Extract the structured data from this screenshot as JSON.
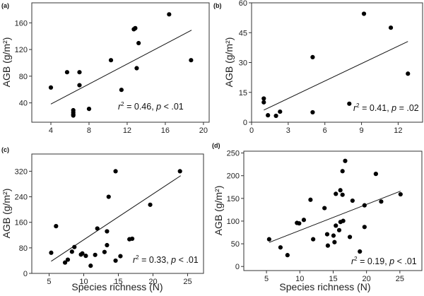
{
  "chart_data": [
    {
      "type": "scatter",
      "panel_label": "(a)",
      "title": "",
      "xlabel": "",
      "ylabel": "AGB (g/m²)",
      "xlim": [
        2,
        20.6
      ],
      "ylim": [
        11,
        190
      ],
      "xticks": [
        4,
        8,
        12,
        16,
        20
      ],
      "yticks": [
        40,
        80,
        120,
        160
      ],
      "grid": false,
      "points": [
        [
          4,
          63
        ],
        [
          5.7,
          86
        ],
        [
          7,
          86
        ],
        [
          7,
          66.5
        ],
        [
          6.35,
          29
        ],
        [
          6.35,
          26
        ],
        [
          6.35,
          23
        ],
        [
          6.35,
          21
        ],
        [
          8,
          31
        ],
        [
          10.3,
          104
        ],
        [
          11.4,
          59.5
        ],
        [
          12.7,
          150.4
        ],
        [
          12.85,
          152
        ],
        [
          13,
          92
        ],
        [
          13.2,
          129.6
        ],
        [
          16.4,
          172.7
        ],
        [
          18.7,
          104
        ]
      ],
      "fit_line": [
        [
          4,
          38.2
        ],
        [
          18.75,
          149
        ]
      ],
      "annotation": {
        "r2": "0.46",
        "p_op": "<",
        "p_val": ".01"
      }
    },
    {
      "type": "scatter",
      "panel_label": "(b)",
      "title": "",
      "xlabel": "",
      "ylabel": "AGB (g/m²)",
      "xlim": [
        0,
        14
      ],
      "ylim": [
        0,
        60
      ],
      "xticks": [
        0,
        3,
        6,
        9,
        12
      ],
      "yticks": [
        0,
        15,
        30,
        45,
        60
      ],
      "grid": false,
      "points": [
        [
          1,
          11.9
        ],
        [
          1,
          10
        ],
        [
          1.34,
          3.5
        ],
        [
          2,
          3.2
        ],
        [
          2.33,
          5.3
        ],
        [
          5,
          32.7
        ],
        [
          5,
          5
        ],
        [
          8,
          9.3
        ],
        [
          9.2,
          54.5
        ],
        [
          11.4,
          47.5
        ],
        [
          12.8,
          24.4
        ]
      ],
      "fit_line": [
        [
          1,
          6.1
        ],
        [
          12.8,
          40.6
        ]
      ],
      "annotation": {
        "r2": "0.41",
        "p_op": "=",
        "p_val": ".02"
      }
    },
    {
      "type": "scatter",
      "panel_label": "(c)",
      "title": "",
      "xlabel": "Species richness (N)",
      "ylabel": "AGB (g/m²)",
      "xlim": [
        2.5,
        27.3
      ],
      "ylim": [
        0,
        374
      ],
      "xticks": [
        5,
        10,
        15,
        20,
        25
      ],
      "yticks": [
        0,
        80,
        160,
        240,
        320
      ],
      "grid": false,
      "points": [
        [
          5.3,
          64.7
        ],
        [
          6,
          148
        ],
        [
          7.3,
          34
        ],
        [
          7.7,
          43
        ],
        [
          8.3,
          68
        ],
        [
          8.65,
          82.6
        ],
        [
          9.6,
          59
        ],
        [
          9.8,
          62.5
        ],
        [
          10.3,
          55
        ],
        [
          11,
          24
        ],
        [
          11.65,
          58
        ],
        [
          11.96,
          140.6
        ],
        [
          13,
          67
        ],
        [
          13.36,
          131.7
        ],
        [
          13.36,
          88.5
        ],
        [
          13.6,
          240
        ],
        [
          14.6,
          320
        ],
        [
          14.6,
          40
        ],
        [
          15.3,
          54
        ],
        [
          16.6,
          107
        ],
        [
          17,
          108.6
        ],
        [
          19.6,
          215
        ],
        [
          23.9,
          320
        ]
      ],
      "fit_line": [
        [
          5.3,
          38
        ],
        [
          24,
          306
        ]
      ],
      "annotation": {
        "r2": "0.33",
        "p_op": "<",
        "p_val": ".01"
      }
    },
    {
      "type": "scatter",
      "panel_label": "(d)",
      "title": "",
      "xlabel": "Species richness (N)",
      "ylabel": "AGB (g/m²)",
      "xlim": [
        1.6,
        28.3
      ],
      "ylim": [
        -9,
        254
      ],
      "xticks": [
        5,
        10,
        15,
        20,
        25
      ],
      "yticks": [
        0,
        50,
        100,
        150,
        200,
        250
      ],
      "grid": false,
      "points": [
        [
          5.4,
          60
        ],
        [
          7.1,
          42
        ],
        [
          8.15,
          25
        ],
        [
          9.57,
          96
        ],
        [
          9.9,
          95
        ],
        [
          10.6,
          102.6
        ],
        [
          11.6,
          147
        ],
        [
          12,
          60
        ],
        [
          13.7,
          128.6
        ],
        [
          14.1,
          71
        ],
        [
          14.2,
          46
        ],
        [
          15.05,
          68
        ],
        [
          15.2,
          53.6
        ],
        [
          15.4,
          90
        ],
        [
          15.4,
          160
        ],
        [
          15.9,
          80
        ],
        [
          16.08,
          168
        ],
        [
          16.1,
          98
        ],
        [
          16.4,
          210
        ],
        [
          16.4,
          158
        ],
        [
          16.5,
          100.5
        ],
        [
          16.8,
          232.6
        ],
        [
          17.5,
          65
        ],
        [
          17.9,
          145
        ],
        [
          19,
          33
        ],
        [
          19.7,
          134.7
        ],
        [
          19.7,
          87
        ],
        [
          21.4,
          204
        ],
        [
          22.2,
          143
        ],
        [
          25.1,
          159
        ]
      ],
      "fit_line": [
        [
          5.4,
          53
        ],
        [
          25.1,
          166
        ]
      ],
      "annotation": {
        "r2": "0.19",
        "p_op": "<",
        "p_val": ".01"
      }
    }
  ]
}
